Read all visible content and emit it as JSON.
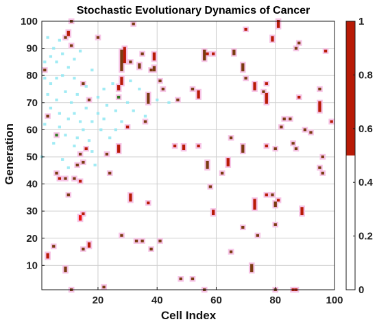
{
  "chart_data": {
    "type": "heatmap",
    "title": "Stochastic Evolutionary Dynamics of Cancer",
    "xlabel": "Cell Index",
    "ylabel": "Generation",
    "xlim": [
      1,
      100
    ],
    "ylim": [
      1,
      100
    ],
    "xticks": [
      20,
      40,
      60,
      80,
      100
    ],
    "yticks": [
      10,
      20,
      30,
      40,
      50,
      60,
      70,
      80,
      90,
      100
    ],
    "grid": true,
    "colorbar": {
      "ticks": [
        0,
        0.2,
        0.4,
        0.6,
        0.8,
        1
      ],
      "tick_labels": [
        "0",
        "0.2",
        "0.4",
        "0.6",
        "0.8",
        "1"
      ],
      "colors": [
        {
          "from": 0,
          "to": 0.5,
          "color": "#ffffff"
        },
        {
          "from": 0.5,
          "to": 1,
          "color": "#b81a06"
        }
      ]
    },
    "palette": {
      "high": "#b81a06",
      "medium": "#7a3b10",
      "halo": "#f6c4e6",
      "bright": "#ee1111",
      "green": "#2f7a1f",
      "cyan": "#8fe8f2",
      "grid": "#cfcfcf"
    },
    "cells": [
      {
        "x": 10,
        "y": 95,
        "h": 2,
        "c": "high"
      },
      {
        "x": 9,
        "y": 94,
        "h": 1,
        "c": "medium"
      },
      {
        "x": 11,
        "y": 100,
        "h": 1,
        "c": "medium"
      },
      {
        "x": 11,
        "y": 91,
        "h": 1,
        "c": "medium"
      },
      {
        "x": 20,
        "y": 94,
        "h": 1,
        "c": "medium"
      },
      {
        "x": 32,
        "y": 99,
        "h": 1,
        "c": "medium"
      },
      {
        "x": 29,
        "y": 85,
        "h": 6,
        "c": "high"
      },
      {
        "x": 28,
        "y": 82,
        "h": 8,
        "c": "medium"
      },
      {
        "x": 28,
        "y": 77,
        "h": 3,
        "c": "high"
      },
      {
        "x": 27,
        "y": 75,
        "h": 2,
        "c": "high"
      },
      {
        "x": 27,
        "y": 72,
        "h": 1,
        "c": "green"
      },
      {
        "x": 31,
        "y": 85,
        "h": 1,
        "c": "medium"
      },
      {
        "x": 35,
        "y": 88,
        "h": 1,
        "c": "medium"
      },
      {
        "x": 34,
        "y": 83,
        "h": 2,
        "c": "medium"
      },
      {
        "x": 38,
        "y": 82,
        "h": 1,
        "c": "medium"
      },
      {
        "x": 39,
        "y": 86,
        "h": 3,
        "c": "high"
      },
      {
        "x": 39,
        "y": 82,
        "h": 2,
        "c": "medium"
      },
      {
        "x": 37,
        "y": 70,
        "h": 4,
        "c": "medium"
      },
      {
        "x": 41,
        "y": 78,
        "h": 1,
        "c": "medium"
      },
      {
        "x": 42,
        "y": 75,
        "h": 1,
        "c": "medium"
      },
      {
        "x": 47,
        "y": 71,
        "h": 1,
        "c": "medium"
      },
      {
        "x": 52,
        "y": 75,
        "h": 1,
        "c": "medium"
      },
      {
        "x": 54,
        "y": 72,
        "h": 3,
        "c": "high"
      },
      {
        "x": 56,
        "y": 86,
        "h": 4,
        "c": "medium"
      },
      {
        "x": 57,
        "y": 88,
        "h": 1,
        "c": "high"
      },
      {
        "x": 59,
        "y": 88,
        "h": 1,
        "c": "high"
      },
      {
        "x": 66,
        "y": 88,
        "h": 2,
        "c": "medium"
      },
      {
        "x": 70,
        "y": 97,
        "h": 1,
        "c": "high"
      },
      {
        "x": 79,
        "y": 93,
        "h": 2,
        "c": "high"
      },
      {
        "x": 81,
        "y": 98,
        "h": 3,
        "c": "high"
      },
      {
        "x": 69,
        "y": 82,
        "h": 3,
        "c": "medium"
      },
      {
        "x": 70,
        "y": 79,
        "h": 1,
        "c": "medium"
      },
      {
        "x": 73,
        "y": 75,
        "h": 3,
        "c": "high"
      },
      {
        "x": 77,
        "y": 77,
        "h": 1,
        "c": "high"
      },
      {
        "x": 76,
        "y": 74,
        "h": 1,
        "c": "medium"
      },
      {
        "x": 77,
        "y": 70,
        "h": 4,
        "c": "high"
      },
      {
        "x": 87,
        "y": 90,
        "h": 1,
        "c": "medium"
      },
      {
        "x": 88,
        "y": 92,
        "h": 1,
        "c": "medium"
      },
      {
        "x": 97,
        "y": 89,
        "h": 1,
        "c": "high"
      },
      {
        "x": 88,
        "y": 72,
        "h": 1,
        "c": "high"
      },
      {
        "x": 95,
        "y": 75,
        "h": 1,
        "c": "medium"
      },
      {
        "x": 95,
        "y": 67,
        "h": 4,
        "c": "high"
      },
      {
        "x": 99,
        "y": 63,
        "h": 1,
        "c": "high"
      },
      {
        "x": 15,
        "y": 77,
        "h": 1,
        "c": "medium"
      },
      {
        "x": 17,
        "y": 71,
        "h": 1,
        "c": "medium"
      },
      {
        "x": 2,
        "y": 82,
        "h": 1,
        "c": "medium"
      },
      {
        "x": 3,
        "y": 65,
        "h": 1,
        "c": "medium"
      },
      {
        "x": 6,
        "y": 58,
        "h": 1,
        "c": "green"
      },
      {
        "x": 14,
        "y": 51,
        "h": 1,
        "c": "medium"
      },
      {
        "x": 16,
        "y": 53,
        "h": 1,
        "c": "high"
      },
      {
        "x": 15,
        "y": 48,
        "h": 1,
        "c": "medium"
      },
      {
        "x": 13,
        "y": 47,
        "h": 1,
        "c": "medium"
      },
      {
        "x": 6,
        "y": 44,
        "h": 1,
        "c": "medium"
      },
      {
        "x": 7,
        "y": 42,
        "h": 1,
        "c": "high"
      },
      {
        "x": 9,
        "y": 42,
        "h": 1,
        "c": "medium"
      },
      {
        "x": 12,
        "y": 42,
        "h": 1,
        "c": "medium"
      },
      {
        "x": 14,
        "y": 41,
        "h": 1,
        "c": "high"
      },
      {
        "x": 10,
        "y": 36,
        "h": 1,
        "c": "medium"
      },
      {
        "x": 14,
        "y": 27,
        "h": 2,
        "c": "bright"
      },
      {
        "x": 15,
        "y": 29,
        "h": 1,
        "c": "high"
      },
      {
        "x": 23,
        "y": 51,
        "h": 1,
        "c": "medium"
      },
      {
        "x": 27,
        "y": 52,
        "h": 3,
        "c": "high"
      },
      {
        "x": 30,
        "y": 61,
        "h": 1,
        "c": "high"
      },
      {
        "x": 36,
        "y": 63,
        "h": 1,
        "c": "medium"
      },
      {
        "x": 24,
        "y": 44,
        "h": 1,
        "c": "medium"
      },
      {
        "x": 31,
        "y": 34,
        "h": 3,
        "c": "high"
      },
      {
        "x": 37,
        "y": 33,
        "h": 1,
        "c": "high"
      },
      {
        "x": 28,
        "y": 21,
        "h": 1,
        "c": "medium"
      },
      {
        "x": 33,
        "y": 19,
        "h": 1,
        "c": "medium"
      },
      {
        "x": 35,
        "y": 19,
        "h": 1,
        "c": "medium"
      },
      {
        "x": 38,
        "y": 16,
        "h": 1,
        "c": "medium"
      },
      {
        "x": 41,
        "y": 19,
        "h": 1,
        "c": "medium"
      },
      {
        "x": 46,
        "y": 54,
        "h": 1,
        "c": "high"
      },
      {
        "x": 49,
        "y": 53,
        "h": 2,
        "c": "high"
      },
      {
        "x": 54,
        "y": 54,
        "h": 1,
        "c": "high"
      },
      {
        "x": 57,
        "y": 46,
        "h": 3,
        "c": "medium"
      },
      {
        "x": 58,
        "y": 39,
        "h": 1,
        "c": "medium"
      },
      {
        "x": 59,
        "y": 29,
        "h": 2,
        "c": "high"
      },
      {
        "x": 62,
        "y": 44,
        "h": 1,
        "c": "medium"
      },
      {
        "x": 64,
        "y": 47,
        "h": 3,
        "c": "high"
      },
      {
        "x": 65,
        "y": 57,
        "h": 1,
        "c": "medium"
      },
      {
        "x": 69,
        "y": 52,
        "h": 3,
        "c": "medium"
      },
      {
        "x": 69,
        "y": 24,
        "h": 1,
        "c": "medium"
      },
      {
        "x": 65,
        "y": 15,
        "h": 1,
        "c": "medium"
      },
      {
        "x": 72,
        "y": 8,
        "h": 3,
        "c": "medium"
      },
      {
        "x": 73,
        "y": 31,
        "h": 4,
        "c": "high"
      },
      {
        "x": 74,
        "y": 21,
        "h": 1,
        "c": "medium"
      },
      {
        "x": 77,
        "y": 36,
        "h": 1,
        "c": "high"
      },
      {
        "x": 77,
        "y": 54,
        "h": 1,
        "c": "high"
      },
      {
        "x": 79,
        "y": 36,
        "h": 1,
        "c": "medium"
      },
      {
        "x": 80,
        "y": 32,
        "h": 2,
        "c": "medium"
      },
      {
        "x": 81,
        "y": 34,
        "h": 1,
        "c": "high"
      },
      {
        "x": 80,
        "y": 53,
        "h": 1,
        "c": "medium"
      },
      {
        "x": 80,
        "y": 25,
        "h": 1,
        "c": "medium"
      },
      {
        "x": 80,
        "y": 1,
        "h": 1,
        "c": "medium"
      },
      {
        "x": 82,
        "y": 61,
        "h": 1,
        "c": "medium"
      },
      {
        "x": 83,
        "y": 64,
        "h": 1,
        "c": "medium"
      },
      {
        "x": 85,
        "y": 64,
        "h": 1,
        "c": "medium"
      },
      {
        "x": 86,
        "y": 55,
        "h": 1,
        "c": "medium"
      },
      {
        "x": 87,
        "y": 53,
        "h": 1,
        "c": "medium"
      },
      {
        "x": 89,
        "y": 29,
        "h": 3,
        "c": "high"
      },
      {
        "x": 90,
        "y": 60,
        "h": 1,
        "c": "medium"
      },
      {
        "x": 92,
        "y": 59,
        "h": 1,
        "c": "medium"
      },
      {
        "x": 95,
        "y": 46,
        "h": 1,
        "c": "medium"
      },
      {
        "x": 96,
        "y": 44,
        "h": 1,
        "c": "medium"
      },
      {
        "x": 96,
        "y": 50,
        "h": 1,
        "c": "medium"
      },
      {
        "x": 3,
        "y": 13,
        "h": 2,
        "c": "high"
      },
      {
        "x": 5,
        "y": 17,
        "h": 1,
        "c": "medium"
      },
      {
        "x": 9,
        "y": 8,
        "h": 2,
        "c": "medium"
      },
      {
        "x": 11,
        "y": 1,
        "h": 1,
        "c": "medium"
      },
      {
        "x": 15,
        "y": 16,
        "h": 1,
        "c": "medium"
      },
      {
        "x": 17,
        "y": 17,
        "h": 2,
        "c": "high"
      },
      {
        "x": 22,
        "y": 2,
        "h": 1,
        "c": "medium"
      },
      {
        "x": 48,
        "y": 5,
        "h": 1,
        "c": "medium"
      },
      {
        "x": 52,
        "y": 5,
        "h": 1,
        "c": "medium"
      },
      {
        "x": 56,
        "y": 1,
        "h": 1,
        "c": "medium"
      },
      {
        "x": 86,
        "y": 1,
        "h": 1,
        "c": "high"
      },
      {
        "x": 87,
        "y": 1,
        "h": 1,
        "c": "high"
      }
    ],
    "speckles": [
      [
        3,
        94
      ],
      [
        5,
        90
      ],
      [
        7,
        93
      ],
      [
        4,
        87
      ],
      [
        6,
        85
      ],
      [
        8,
        88
      ],
      [
        12,
        86
      ],
      [
        2,
        79
      ],
      [
        4,
        77
      ],
      [
        8,
        80
      ],
      [
        12,
        79
      ],
      [
        3,
        73
      ],
      [
        6,
        71
      ],
      [
        9,
        74
      ],
      [
        13,
        73
      ],
      [
        16,
        68
      ],
      [
        20,
        66
      ],
      [
        23,
        69
      ],
      [
        26,
        67
      ],
      [
        4,
        68
      ],
      [
        7,
        66
      ],
      [
        10,
        64
      ],
      [
        14,
        63
      ],
      [
        18,
        63
      ],
      [
        21,
        60
      ],
      [
        9,
        58
      ],
      [
        13,
        57
      ],
      [
        17,
        56
      ],
      [
        5,
        55
      ],
      [
        12,
        54
      ],
      [
        18,
        52
      ],
      [
        24,
        57
      ],
      [
        28,
        63
      ],
      [
        32,
        67
      ],
      [
        36,
        65
      ],
      [
        40,
        71
      ],
      [
        44,
        70
      ],
      [
        34,
        75
      ],
      [
        20,
        72
      ],
      [
        11,
        70
      ],
      [
        2,
        62
      ],
      [
        22,
        64
      ],
      [
        15,
        60
      ],
      [
        30,
        70
      ],
      [
        26,
        60
      ],
      [
        1,
        50
      ],
      [
        8,
        49
      ],
      [
        10,
        46
      ],
      [
        19,
        47
      ],
      [
        22,
        75
      ],
      [
        6,
        79
      ],
      [
        10,
        83
      ],
      [
        14,
        89
      ],
      [
        18,
        82
      ],
      [
        2,
        85
      ],
      [
        25,
        77
      ],
      [
        31,
        78
      ],
      [
        16,
        76
      ],
      [
        12,
        66
      ],
      [
        7,
        61
      ]
    ]
  }
}
